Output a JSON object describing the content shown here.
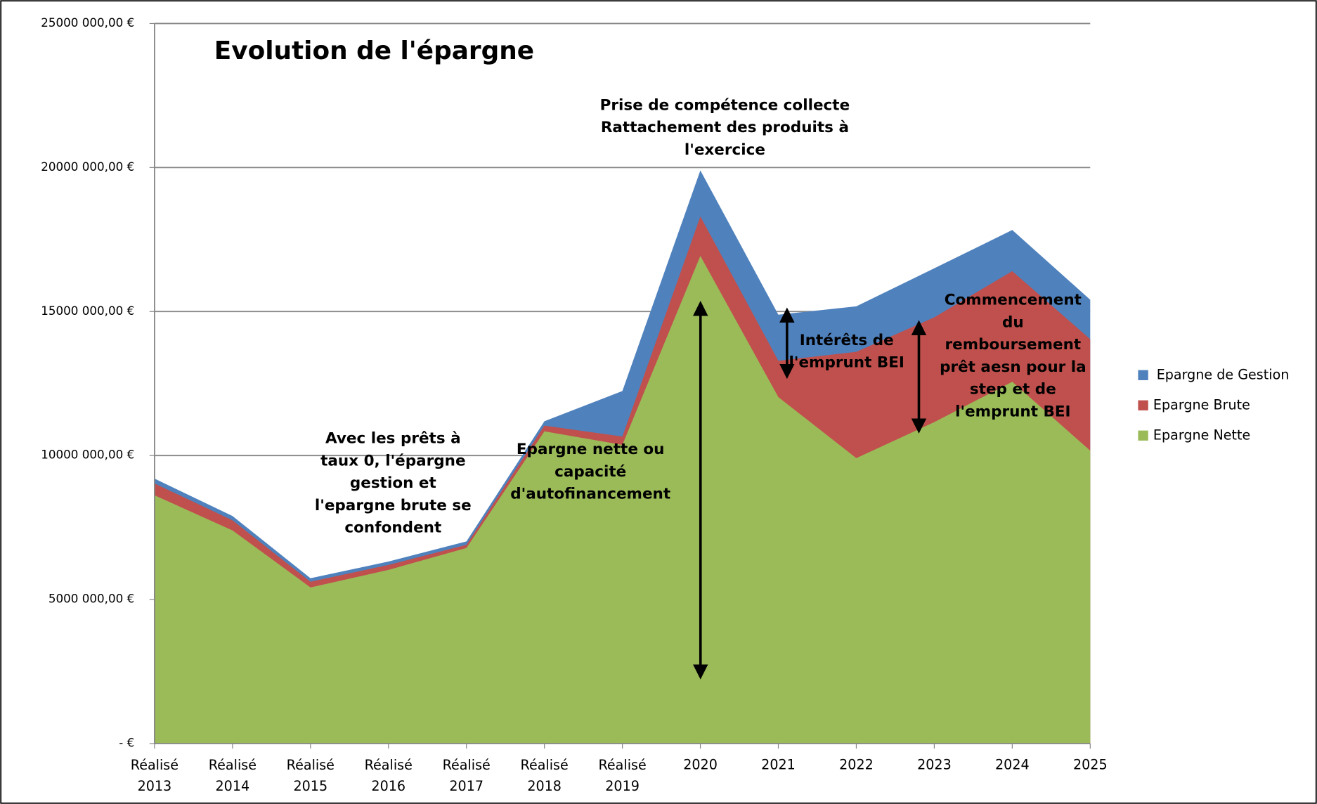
{
  "chart_data": {
    "type": "area",
    "title": "Evolution de l'épargne",
    "categories": [
      "Réalisé 2013",
      "Réalisé 2014",
      "Réalisé 2015",
      "Réalisé 2016",
      "Réalisé 2017",
      "Réalisé 2018",
      "Réalisé 2019",
      "2020",
      "2021",
      "2022",
      "2023",
      "2024",
      "2025"
    ],
    "series": [
      {
        "name": "Epargne de Gestion",
        "color": "#4f81bd",
        "values": [
          9200000,
          7900000,
          5740000,
          6320000,
          7020000,
          11190000,
          12240000,
          19900000,
          14890000,
          15180000,
          16500000,
          17830000,
          15410000
        ]
      },
      {
        "name": "Epargne Brute",
        "color": "#c0504d",
        "values": [
          9030000,
          7750000,
          5620000,
          6200000,
          6900000,
          11040000,
          10660000,
          18300000,
          13290000,
          13600000,
          14800000,
          16400000,
          14040000
        ]
      },
      {
        "name": "Epargne Nette",
        "color": "#9bbb59",
        "values": [
          8620000,
          7400000,
          5420000,
          6030000,
          6790000,
          10840000,
          10370000,
          16930000,
          12030000,
          9910000,
          11160000,
          12560000,
          10170000
        ]
      }
    ],
    "ylim": [
      0,
      25000000
    ],
    "yticks": [
      {
        "value": 0,
        "label": "-   €"
      },
      {
        "value": 5000000,
        "label": "5000 000,00 €"
      },
      {
        "value": 10000000,
        "label": "10000 000,00 €"
      },
      {
        "value": 15000000,
        "label": "15000 000,00 €"
      },
      {
        "value": 20000000,
        "label": "20000 000,00 €"
      },
      {
        "value": 25000000,
        "label": "25000 000,00 €"
      }
    ],
    "grid": true,
    "legend": "right",
    "annotations": [
      [
        "Prise de compétence collecte",
        "Rattachement des produits à",
        "l'exercice"
      ],
      [
        "Avec les prêts à",
        "taux 0, l'épargne",
        "gestion et",
        "l'epargne brute se",
        "confondent"
      ],
      [
        "Epargne nette ou",
        "capacité",
        "d'autofinancement"
      ],
      [
        "Intérêts de",
        "l'emprunt BEI"
      ],
      [
        "Commencement",
        "du",
        "remboursement",
        "prêt aesn pour la",
        "step et de",
        "l'emprunt BEI"
      ]
    ]
  }
}
